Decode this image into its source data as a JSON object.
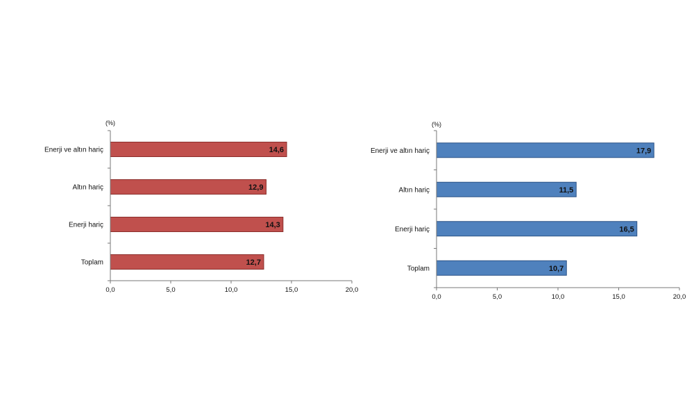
{
  "chart_data": [
    {
      "type": "bar",
      "orientation": "horizontal",
      "unit_label": "(%)",
      "categories": [
        "Enerji ve altın hariç",
        "Altın hariç",
        "Enerji hariç",
        "Toplam"
      ],
      "values": [
        14.6,
        12.9,
        14.3,
        12.7
      ],
      "value_labels": [
        "14,6",
        "12,9",
        "14,3",
        "12,7"
      ],
      "xlim": [
        0,
        20
      ],
      "xticks": [
        "0,0",
        "5,0",
        "10,0",
        "15,0",
        "20,0"
      ],
      "color": "#c0504d",
      "edge_color": "#8b2e2b",
      "grid": false
    },
    {
      "type": "bar",
      "orientation": "horizontal",
      "unit_label": "(%)",
      "categories": [
        "Enerji ve altın hariç",
        "Altın hariç",
        "Enerji hariç",
        "Toplam"
      ],
      "values": [
        17.9,
        11.5,
        16.5,
        10.7
      ],
      "value_labels": [
        "17,9",
        "11,5",
        "16,5",
        "10,7"
      ],
      "xlim": [
        0,
        20
      ],
      "xticks": [
        "0,0",
        "5,0",
        "10,0",
        "15,0",
        "20,0"
      ],
      "color": "#4f81bd",
      "edge_color": "#2c5286",
      "grid": false
    }
  ]
}
